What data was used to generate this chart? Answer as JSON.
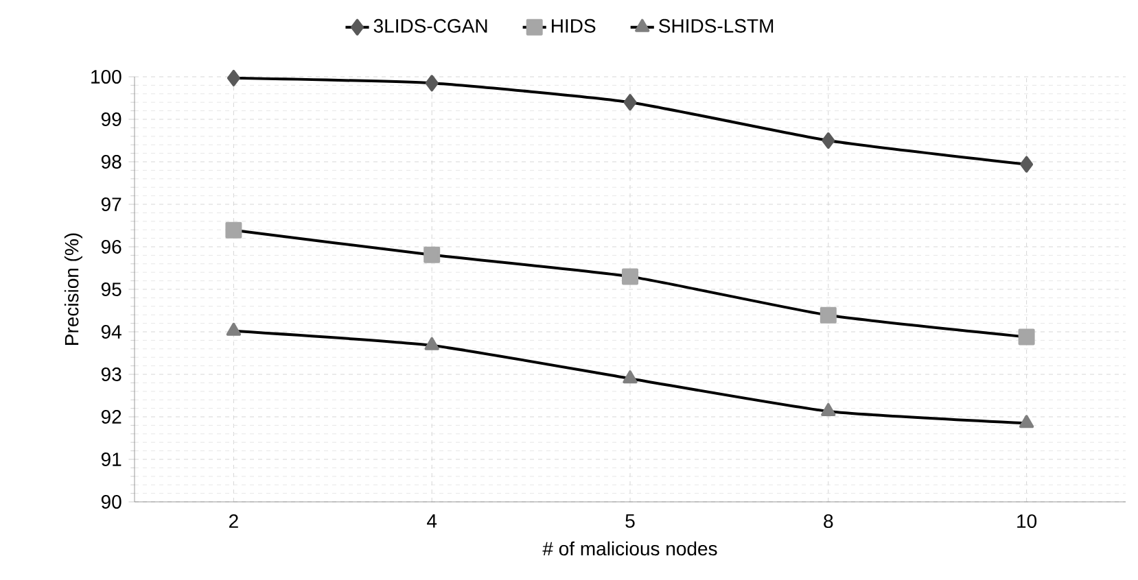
{
  "chart_data": {
    "type": "line",
    "xlabel": "# of malicious nodes",
    "ylabel": "Precision (%)",
    "categories": [
      "2",
      "4",
      "5",
      "8",
      "10"
    ],
    "series": [
      {
        "name": "3LIDS-CGAN",
        "color": "#595959",
        "marker": "diamond",
        "values": [
          99.97,
          99.85,
          99.4,
          98.5,
          97.94
        ]
      },
      {
        "name": "HIDS",
        "color": "#a6a6a6",
        "marker": "square",
        "values": [
          96.39,
          95.81,
          95.3,
          94.39,
          93.88
        ]
      },
      {
        "name": "SHIDS-LSTM",
        "color": "#7f7f7f",
        "marker": "triangle",
        "values": [
          94.02,
          93.68,
          92.9,
          92.13,
          91.85
        ]
      }
    ],
    "ylim": [
      90,
      100
    ],
    "yticks": [
      90,
      91,
      92,
      93,
      94,
      95,
      96,
      97,
      98,
      99,
      100
    ],
    "grid": true,
    "legend": "top",
    "line_style": "solid"
  }
}
